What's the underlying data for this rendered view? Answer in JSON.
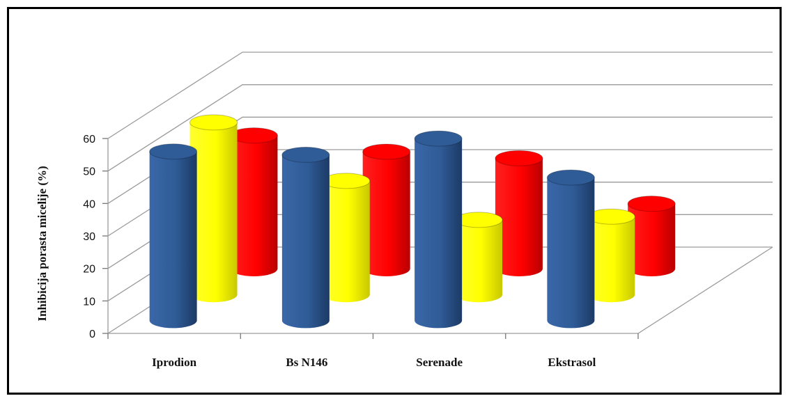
{
  "chart_data": {
    "type": "bar",
    "style": "3d-cylinder",
    "title": "",
    "ylabel": "Inhibicija porasta micelije (%)",
    "xlabel": "",
    "ylim": [
      0,
      60
    ],
    "yticks": [
      0,
      10,
      20,
      30,
      40,
      50,
      60
    ],
    "categories": [
      "Iprodion",
      "Bs N146",
      "Serenade",
      "Ekstrasol"
    ],
    "grid": true,
    "legend": "none",
    "series": [
      {
        "color": "#2f5b96",
        "values": [
          52,
          51,
          56,
          44
        ]
      },
      {
        "color": "#ffff00",
        "values": [
          53,
          35,
          23,
          24
        ]
      },
      {
        "color": "#ff0000",
        "values": [
          41,
          36,
          34,
          20
        ]
      }
    ]
  }
}
